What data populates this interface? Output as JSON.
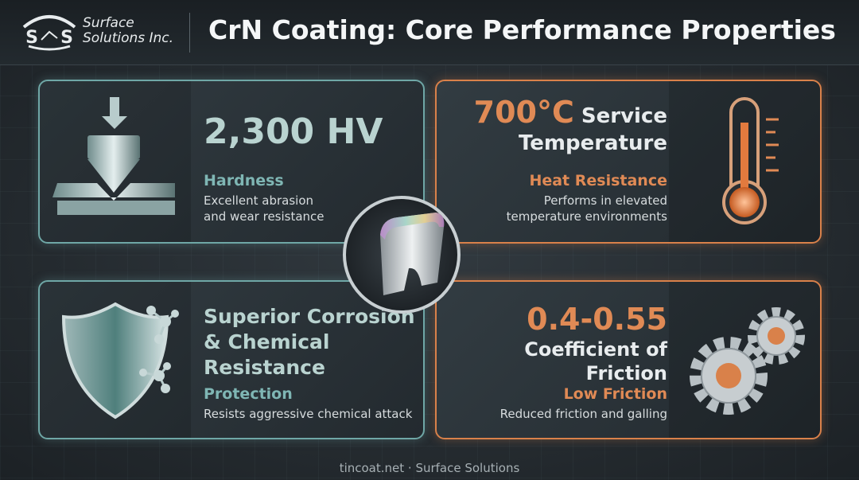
{
  "header": {
    "logo_initials": [
      "S",
      "S"
    ],
    "company": [
      "Surface",
      "Solutions Inc."
    ],
    "title": "CrN Coating: Core Performance Properties"
  },
  "cards": [
    {
      "headline": "2,300 HV",
      "label": "Hardness",
      "description": "Excellent abrasion and wear resistance"
    },
    {
      "headline": "700°C",
      "headline_rest": "Service Temperature",
      "label": "Heat Resistance",
      "description": "Performs in elevated temperature environments"
    },
    {
      "headline": "Superior Corrosion & Chemical Resistance",
      "label": "Protection",
      "description": "Resists aggressive chemical attack"
    },
    {
      "headline": "0.4-0.55",
      "headline_rest": "Coefficient of Friction",
      "label": "Low Friction",
      "description": "Reduced friction and galling"
    }
  ],
  "footer": "tincoat.net · Surface Solutions"
}
